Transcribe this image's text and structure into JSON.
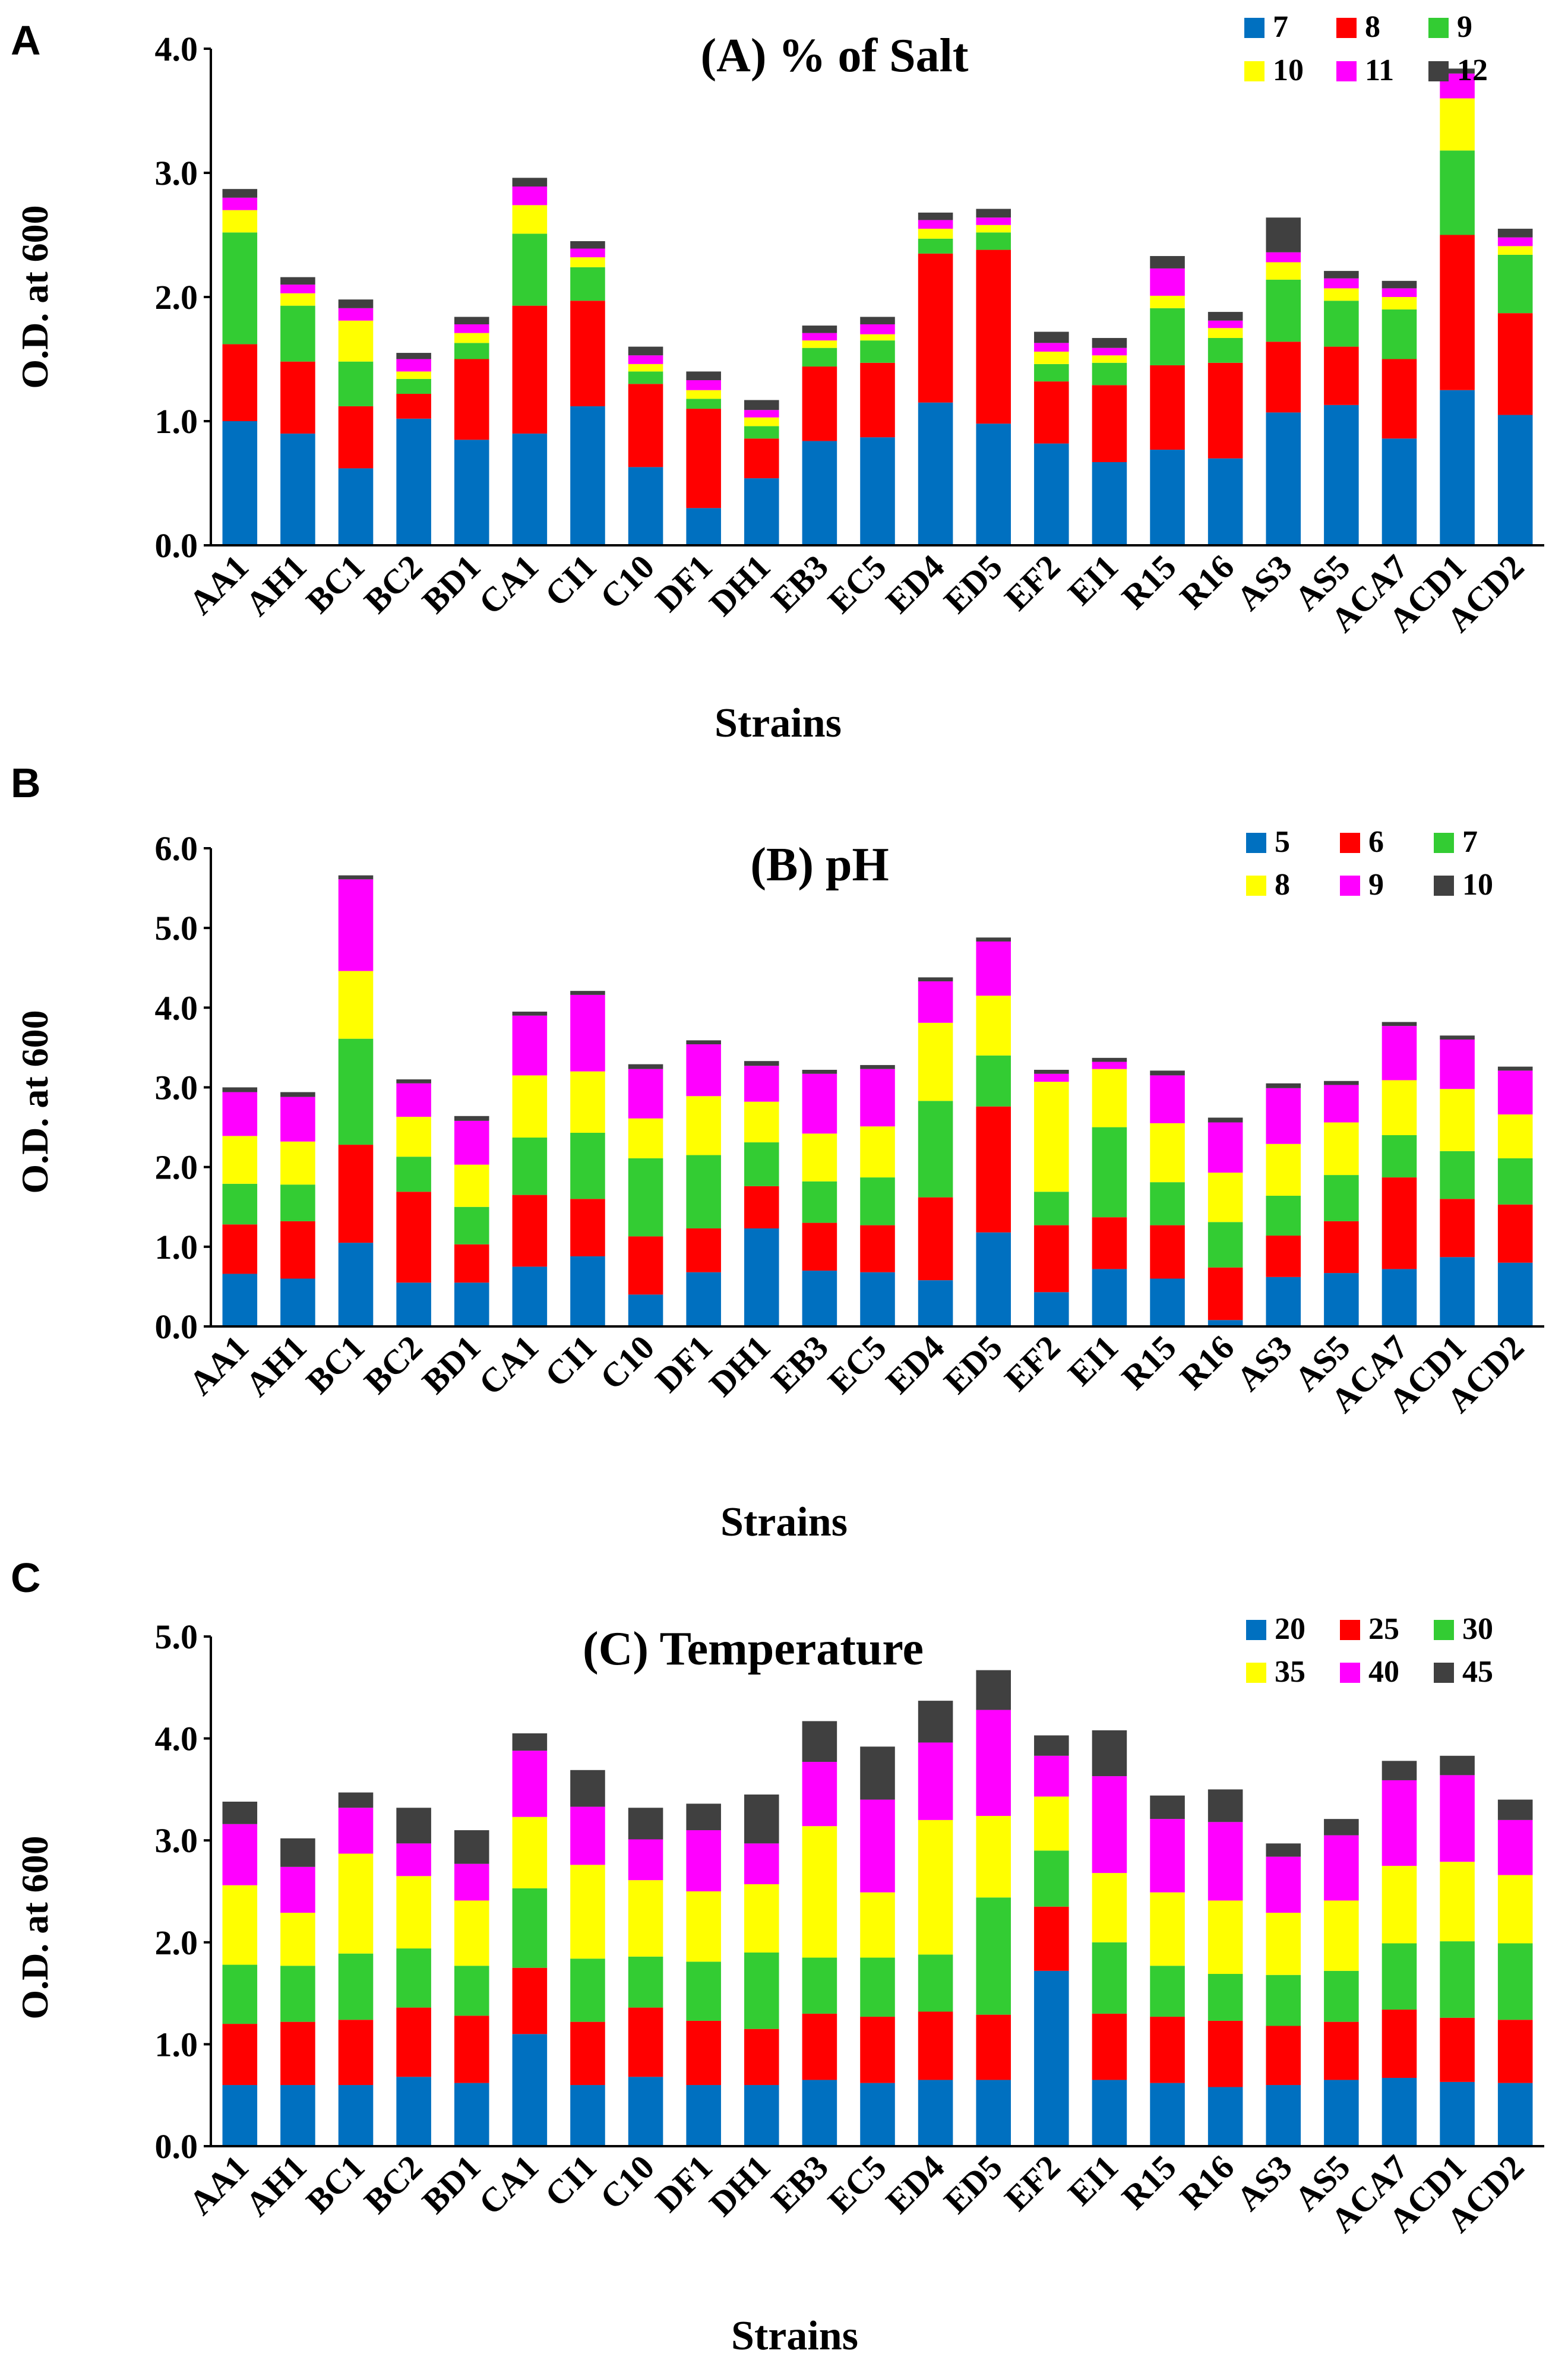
{
  "colors": [
    "#0070C0",
    "#FF0000",
    "#33CC33",
    "#FFFF00",
    "#FF00FF",
    "#404040"
  ],
  "chart_data": [
    {
      "panel_label": "A",
      "type": "bar",
      "stacked": true,
      "title": "(A) % of Salt",
      "xlabel": "Strains",
      "ylabel": "O.D. at 600",
      "ylim": [
        0,
        4
      ],
      "yticks": [
        "0.0",
        "1.0",
        "2.0",
        "3.0",
        "4.0"
      ],
      "legend_position": "top-right",
      "categories": [
        "AA1",
        "AH1",
        "BC1",
        "BC2",
        "BD1",
        "CA1",
        "CI1",
        "C10",
        "DF1",
        "DH1",
        "EB3",
        "EC5",
        "ED4",
        "ED5",
        "EF2",
        "EI1",
        "R15",
        "R16",
        "AS3",
        "AS5",
        "ACA7",
        "ACD1",
        "ACD2"
      ],
      "series": [
        {
          "name": "7",
          "values": [
            1.0,
            0.9,
            0.62,
            1.02,
            0.85,
            0.9,
            1.12,
            0.63,
            0.3,
            0.54,
            0.84,
            0.87,
            1.15,
            0.98,
            0.82,
            0.67,
            0.77,
            0.7,
            1.07,
            1.13,
            0.86,
            1.25,
            1.05
          ]
        },
        {
          "name": "8",
          "values": [
            0.62,
            0.58,
            0.5,
            0.2,
            0.65,
            1.03,
            0.85,
            0.67,
            0.8,
            0.32,
            0.6,
            0.6,
            1.2,
            1.4,
            0.5,
            0.62,
            0.68,
            0.77,
            0.57,
            0.47,
            0.64,
            1.25,
            0.82
          ]
        },
        {
          "name": "9",
          "values": [
            0.9,
            0.45,
            0.36,
            0.12,
            0.13,
            0.58,
            0.27,
            0.1,
            0.08,
            0.1,
            0.15,
            0.18,
            0.12,
            0.14,
            0.14,
            0.18,
            0.46,
            0.2,
            0.5,
            0.37,
            0.4,
            0.68,
            0.47
          ]
        },
        {
          "name": "10",
          "values": [
            0.18,
            0.1,
            0.33,
            0.06,
            0.08,
            0.23,
            0.08,
            0.06,
            0.07,
            0.07,
            0.06,
            0.05,
            0.08,
            0.06,
            0.1,
            0.06,
            0.1,
            0.08,
            0.14,
            0.1,
            0.1,
            0.42,
            0.07
          ]
        },
        {
          "name": "11",
          "values": [
            0.1,
            0.07,
            0.1,
            0.1,
            0.07,
            0.15,
            0.07,
            0.07,
            0.08,
            0.06,
            0.06,
            0.08,
            0.07,
            0.06,
            0.07,
            0.06,
            0.22,
            0.06,
            0.08,
            0.08,
            0.07,
            0.2,
            0.07
          ]
        },
        {
          "name": "12",
          "values": [
            0.07,
            0.06,
            0.07,
            0.05,
            0.06,
            0.07,
            0.06,
            0.07,
            0.07,
            0.08,
            0.06,
            0.06,
            0.06,
            0.07,
            0.09,
            0.08,
            0.1,
            0.07,
            0.28,
            0.06,
            0.06,
            0.04,
            0.07
          ]
        }
      ]
    },
    {
      "panel_label": "B",
      "type": "bar",
      "stacked": true,
      "title": "(B) pH",
      "xlabel": "Strains",
      "ylabel": "O.D. at 600",
      "ylim": [
        0,
        6
      ],
      "yticks": [
        "0.0",
        "1.0",
        "2.0",
        "3.0",
        "4.0",
        "5.0",
        "6.0"
      ],
      "legend_position": "top-right",
      "categories": [
        "AA1",
        "AH1",
        "BC1",
        "BC2",
        "BD1",
        "CA1",
        "CI1",
        "C10",
        "DF1",
        "DH1",
        "EB3",
        "EC5",
        "ED4",
        "ED5",
        "EF2",
        "EI1",
        "R15",
        "R16",
        "AS3",
        "AS5",
        "ACA7",
        "ACD1",
        "ACD2"
      ],
      "series": [
        {
          "name": "5",
          "values": [
            0.66,
            0.6,
            1.05,
            0.55,
            0.55,
            0.75,
            0.88,
            0.4,
            0.68,
            1.23,
            0.7,
            0.68,
            0.58,
            1.18,
            0.43,
            0.72,
            0.6,
            0.08,
            0.62,
            0.67,
            0.72,
            0.87,
            0.8
          ]
        },
        {
          "name": "6",
          "values": [
            0.62,
            0.72,
            1.23,
            1.14,
            0.48,
            0.9,
            0.72,
            0.73,
            0.55,
            0.53,
            0.6,
            0.59,
            1.04,
            1.58,
            0.84,
            0.65,
            0.67,
            0.66,
            0.52,
            0.65,
            1.15,
            0.73,
            0.73
          ]
        },
        {
          "name": "7",
          "values": [
            0.51,
            0.46,
            1.33,
            0.44,
            0.47,
            0.72,
            0.83,
            0.98,
            0.92,
            0.55,
            0.52,
            0.6,
            1.21,
            0.64,
            0.42,
            1.13,
            0.54,
            0.57,
            0.5,
            0.58,
            0.53,
            0.6,
            0.58
          ]
        },
        {
          "name": "8",
          "values": [
            0.6,
            0.54,
            0.85,
            0.5,
            0.53,
            0.78,
            0.77,
            0.5,
            0.74,
            0.51,
            0.6,
            0.64,
            0.98,
            0.75,
            1.38,
            0.73,
            0.74,
            0.62,
            0.65,
            0.66,
            0.69,
            0.78,
            0.55
          ]
        },
        {
          "name": "9",
          "values": [
            0.55,
            0.56,
            1.15,
            0.42,
            0.55,
            0.75,
            0.96,
            0.62,
            0.65,
            0.45,
            0.75,
            0.72,
            0.52,
            0.68,
            0.1,
            0.09,
            0.6,
            0.63,
            0.7,
            0.47,
            0.68,
            0.62,
            0.55
          ]
        },
        {
          "name": "10",
          "values": [
            0.06,
            0.06,
            0.05,
            0.05,
            0.06,
            0.05,
            0.05,
            0.06,
            0.05,
            0.06,
            0.05,
            0.05,
            0.05,
            0.05,
            0.05,
            0.05,
            0.06,
            0.06,
            0.06,
            0.05,
            0.05,
            0.05,
            0.05
          ]
        }
      ]
    },
    {
      "panel_label": "C",
      "type": "bar",
      "stacked": true,
      "title": "(C) Temperature",
      "xlabel": "Strains",
      "ylabel": "O.D. at 600",
      "ylim": [
        0,
        5
      ],
      "yticks": [
        "0.0",
        "1.0",
        "2.0",
        "3.0",
        "4.0",
        "5.0"
      ],
      "legend_position": "top-right",
      "categories": [
        "AA1",
        "AH1",
        "BC1",
        "BC2",
        "BD1",
        "CA1",
        "CI1",
        "C10",
        "DF1",
        "DH1",
        "EB3",
        "EC5",
        "ED4",
        "ED5",
        "EF2",
        "EI1",
        "R15",
        "R16",
        "AS3",
        "AS5",
        "ACA7",
        "ACD1",
        "ACD2"
      ],
      "series": [
        {
          "name": "20",
          "values": [
            0.6,
            0.6,
            0.6,
            0.68,
            0.62,
            1.1,
            0.6,
            0.68,
            0.6,
            0.6,
            0.65,
            0.62,
            0.65,
            0.65,
            1.72,
            0.65,
            0.62,
            0.58,
            0.6,
            0.65,
            0.67,
            0.63,
            0.62
          ]
        },
        {
          "name": "25",
          "values": [
            0.6,
            0.62,
            0.64,
            0.68,
            0.66,
            0.65,
            0.62,
            0.68,
            0.63,
            0.55,
            0.65,
            0.65,
            0.67,
            0.64,
            0.63,
            0.65,
            0.65,
            0.65,
            0.58,
            0.57,
            0.67,
            0.63,
            0.62
          ]
        },
        {
          "name": "30",
          "values": [
            0.58,
            0.55,
            0.65,
            0.58,
            0.49,
            0.78,
            0.62,
            0.5,
            0.58,
            0.75,
            0.55,
            0.58,
            0.56,
            1.15,
            0.55,
            0.7,
            0.5,
            0.46,
            0.5,
            0.5,
            0.65,
            0.75,
            0.75
          ]
        },
        {
          "name": "35",
          "values": [
            0.78,
            0.52,
            0.98,
            0.71,
            0.64,
            0.7,
            0.92,
            0.75,
            0.69,
            0.67,
            1.29,
            0.64,
            1.32,
            0.8,
            0.53,
            0.68,
            0.72,
            0.72,
            0.61,
            0.69,
            0.76,
            0.78,
            0.67
          ]
        },
        {
          "name": "40",
          "values": [
            0.6,
            0.45,
            0.45,
            0.32,
            0.36,
            0.65,
            0.57,
            0.4,
            0.6,
            0.4,
            0.63,
            0.91,
            0.76,
            1.04,
            0.4,
            0.95,
            0.72,
            0.77,
            0.55,
            0.64,
            0.84,
            0.85,
            0.54
          ]
        },
        {
          "name": "45",
          "values": [
            0.22,
            0.28,
            0.15,
            0.35,
            0.33,
            0.17,
            0.36,
            0.31,
            0.26,
            0.48,
            0.4,
            0.52,
            0.41,
            0.39,
            0.2,
            0.45,
            0.23,
            0.32,
            0.13,
            0.16,
            0.19,
            0.19,
            0.2
          ]
        }
      ]
    }
  ]
}
